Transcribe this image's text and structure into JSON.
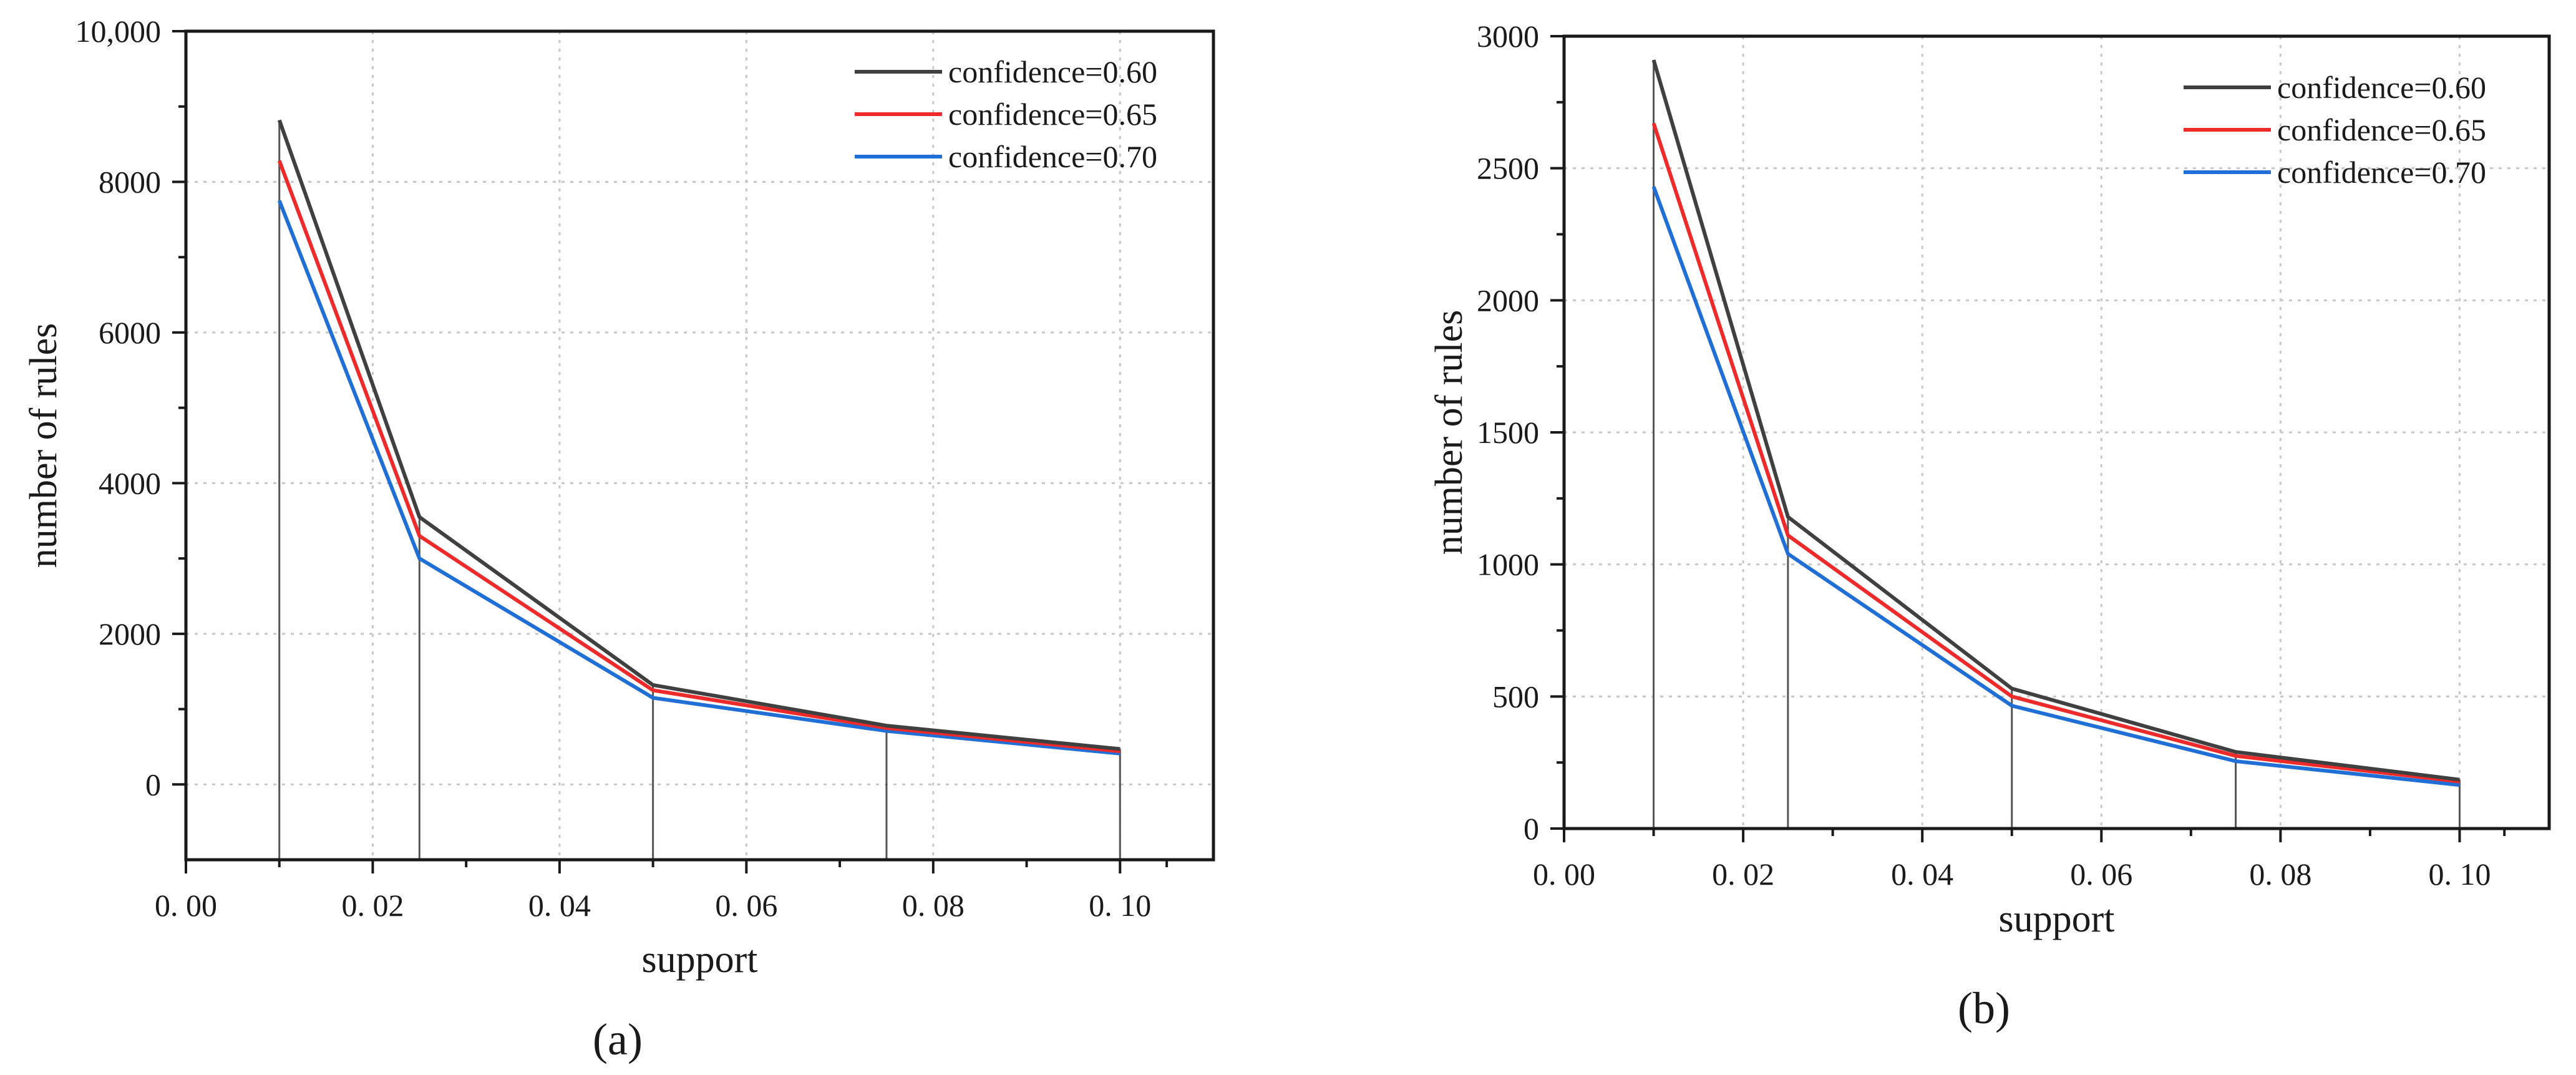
{
  "chart_data": [
    {
      "type": "line",
      "panel_label": "(a)",
      "xlabel": "support",
      "ylabel": "number of rules",
      "xlim": [
        0.0,
        0.11
      ],
      "ylim": [
        -1000,
        10000
      ],
      "xticks": [
        0.0,
        0.02,
        0.04,
        0.06,
        0.08,
        0.1
      ],
      "xtick_labels": [
        "0. 00",
        "0. 02",
        "0. 04",
        "0. 06",
        "0. 08",
        "0. 10"
      ],
      "yticks": [
        0,
        2000,
        4000,
        6000,
        8000,
        10000
      ],
      "ytick_labels": [
        "0",
        "2000",
        "4000",
        "6000",
        "8000",
        "10,000"
      ],
      "grid": true,
      "legend_position": "top-right",
      "x": [
        0.01,
        0.025,
        0.05,
        0.075,
        0.1
      ],
      "series": [
        {
          "name": "confidence=0.60",
          "color": "#404040",
          "values": [
            8820,
            3550,
            1320,
            780,
            470
          ]
        },
        {
          "name": "confidence=0.65",
          "color": "#ee2a2a",
          "values": [
            8280,
            3300,
            1250,
            750,
            440
          ]
        },
        {
          "name": "confidence=0.70",
          "color": "#1f6fd6",
          "values": [
            7750,
            3000,
            1150,
            710,
            410
          ]
        }
      ]
    },
    {
      "type": "line",
      "panel_label": "(b)",
      "xlabel": "support",
      "ylabel": "number of rules",
      "xlim": [
        0.0,
        0.11
      ],
      "ylim": [
        0,
        3000
      ],
      "xticks": [
        0.0,
        0.02,
        0.04,
        0.06,
        0.08,
        0.1
      ],
      "xtick_labels": [
        "0. 00",
        "0. 02",
        "0. 04",
        "0. 06",
        "0. 08",
        "0. 10"
      ],
      "yticks": [
        0,
        500,
        1000,
        1500,
        2000,
        2500,
        3000
      ],
      "ytick_labels": [
        "0",
        "500",
        "1000",
        "1500",
        "2000",
        "2500",
        "3000"
      ],
      "grid": true,
      "legend_position": "top-right",
      "x": [
        0.01,
        0.025,
        0.05,
        0.075,
        0.1
      ],
      "series": [
        {
          "name": "confidence=0.60",
          "color": "#404040",
          "values": [
            2910,
            1180,
            530,
            290,
            185
          ]
        },
        {
          "name": "confidence=0.65",
          "color": "#ee2a2a",
          "values": [
            2670,
            1110,
            500,
            275,
            178
          ]
        },
        {
          "name": "confidence=0.70",
          "color": "#1f6fd6",
          "values": [
            2430,
            1040,
            465,
            255,
            165
          ]
        }
      ]
    }
  ]
}
